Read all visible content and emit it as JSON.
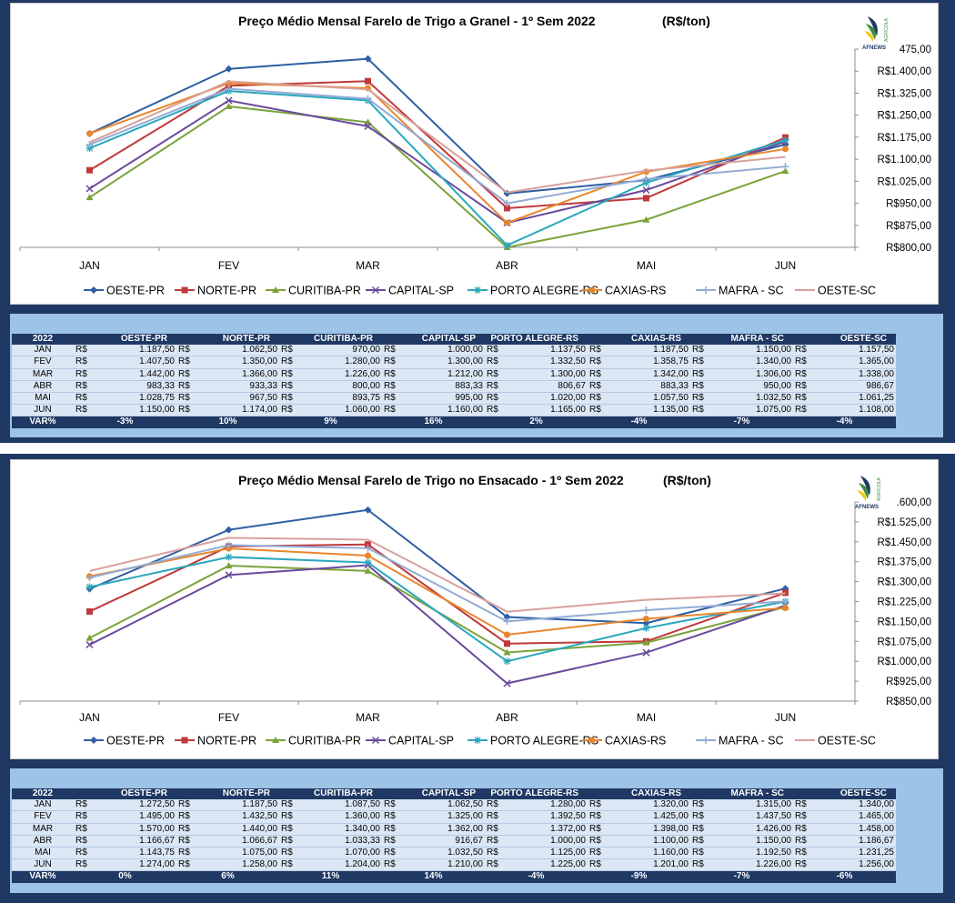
{
  "currency_symbol": "R$",
  "colors": {
    "OESTE-PR": "#2e5fa3",
    "NORTE-PR": "#c0393b",
    "CURITIBA-PR": "#7ba33a",
    "CAPITAL-SP": "#6a4a9c",
    "PORTO ALEGRE-RS": "#2aa7bd",
    "CAXIAS-RS": "#e8862e",
    "MAFRA - SC": "#92abd6",
    "OESTE-SC": "#d7a09c"
  },
  "logo": {
    "text": "AFNEWS",
    "subtext": "AGRÍCOLA"
  },
  "chart_data": [
    {
      "type": "line",
      "title": "Preço Médio Mensal Farelo de Trigo a Granel - 1º Sem 2022",
      "title_unit": "(R$/ton)",
      "categories": [
        "JAN",
        "FEV",
        "MAR",
        "ABR",
        "MAI",
        "JUN"
      ],
      "ylim": [
        800,
        1475
      ],
      "y_ticks": [
        "R$800,00",
        "R$875,00",
        "R$950,00",
        "R$1.025,00",
        "R$1.100,00",
        "R$1.175,00",
        "R$1.250,00",
        "R$1.325,00",
        "R$1.400,00",
        "475,00"
      ],
      "legend_position": "bottom",
      "grid": false,
      "series": [
        {
          "name": "OESTE-PR",
          "marker": "diamond",
          "values": [
            1187.5,
            1407.5,
            1442.0,
            983.33,
            1028.75,
            1150.0
          ]
        },
        {
          "name": "NORTE-PR",
          "marker": "square",
          "values": [
            1062.5,
            1350.0,
            1366.0,
            933.33,
            967.5,
            1174.0
          ]
        },
        {
          "name": "CURITIBA-PR",
          "marker": "triangle",
          "values": [
            970.0,
            1280.0,
            1226.0,
            800.0,
            893.75,
            1060.0
          ]
        },
        {
          "name": "CAPITAL-SP",
          "marker": "x",
          "values": [
            1000.0,
            1300.0,
            1212.0,
            883.33,
            995.0,
            1160.0
          ]
        },
        {
          "name": "PORTO ALEGRE-RS",
          "marker": "star",
          "values": [
            1137.5,
            1332.5,
            1300.0,
            806.67,
            1020.0,
            1165.0
          ]
        },
        {
          "name": "CAXIAS-RS",
          "marker": "circle",
          "values": [
            1187.5,
            1358.75,
            1342.0,
            883.33,
            1057.5,
            1135.0
          ]
        },
        {
          "name": "MAFRA - SC",
          "marker": "plus",
          "values": [
            1150.0,
            1340.0,
            1306.0,
            950.0,
            1032.5,
            1075.0
          ]
        },
        {
          "name": "OESTE-SC",
          "marker": "none",
          "values": [
            1157.5,
            1365.0,
            1338.0,
            986.67,
            1061.25,
            1108.0
          ]
        }
      ]
    },
    {
      "type": "line",
      "title": "Preço Médio Mensal Farelo de Trigo  no Ensacado - 1º Sem 2022",
      "title_unit": "(R$/ton)",
      "categories": [
        "JAN",
        "FEV",
        "MAR",
        "ABR",
        "MAI",
        "JUN"
      ],
      "ylim": [
        850,
        1600
      ],
      "y_ticks": [
        "R$850,00",
        "R$925,00",
        "R$1.000,00",
        "R$1.075,00",
        "R$1.150,00",
        "R$1.225,00",
        "R$1.300,00",
        "R$1.375,00",
        "R$1.450,00",
        "R$1.525,00",
        ".600,00"
      ],
      "legend_position": "bottom",
      "grid": false,
      "series": [
        {
          "name": "OESTE-PR",
          "marker": "diamond",
          "values": [
            1272.5,
            1495.0,
            1570.0,
            1166.67,
            1143.75,
            1274.0
          ]
        },
        {
          "name": "NORTE-PR",
          "marker": "square",
          "values": [
            1187.5,
            1432.5,
            1440.0,
            1066.67,
            1075.0,
            1258.0
          ]
        },
        {
          "name": "CURITIBA-PR",
          "marker": "triangle",
          "values": [
            1087.5,
            1360.0,
            1340.0,
            1033.33,
            1070.0,
            1204.0
          ]
        },
        {
          "name": "CAPITAL-SP",
          "marker": "x",
          "values": [
            1062.5,
            1325.0,
            1362.0,
            916.67,
            1032.5,
            1210.0
          ]
        },
        {
          "name": "PORTO ALEGRE-RS",
          "marker": "star",
          "values": [
            1280.0,
            1392.5,
            1372.0,
            1000.0,
            1125.0,
            1225.0
          ]
        },
        {
          "name": "CAXIAS-RS",
          "marker": "circle",
          "values": [
            1320.0,
            1425.0,
            1398.0,
            1100.0,
            1160.0,
            1201.0
          ]
        },
        {
          "name": "MAFRA - SC",
          "marker": "plus",
          "values": [
            1315.0,
            1437.5,
            1426.0,
            1150.0,
            1192.5,
            1226.0
          ]
        },
        {
          "name": "OESTE-SC",
          "marker": "none",
          "values": [
            1340.0,
            1465.0,
            1458.0,
            1186.67,
            1231.25,
            1256.0
          ]
        }
      ]
    }
  ],
  "tables": [
    {
      "header": [
        "2022",
        "OESTE-PR",
        "NORTE-PR",
        "CURITIBA-PR",
        "CAPITAL-SP",
        "PORTO ALEGRE-RS",
        "CAXIAS-RS",
        "MAFRA - SC",
        "OESTE-SC"
      ],
      "rows": [
        {
          "label": "JAN",
          "values": [
            "1.187,50",
            "1.062,50",
            "970,00",
            "1.000,00",
            "1.137,50",
            "1.187,50",
            "1.150,00",
            "1.157,50"
          ]
        },
        {
          "label": "FEV",
          "values": [
            "1.407,50",
            "1.350,00",
            "1.280,00",
            "1.300,00",
            "1.332,50",
            "1.358,75",
            "1.340,00",
            "1.365,00"
          ]
        },
        {
          "label": "MAR",
          "values": [
            "1.442,00",
            "1.366,00",
            "1.226,00",
            "1.212,00",
            "1.300,00",
            "1.342,00",
            "1.306,00",
            "1.338,00"
          ]
        },
        {
          "label": "ABR",
          "values": [
            "983,33",
            "933,33",
            "800,00",
            "883,33",
            "806,67",
            "883,33",
            "950,00",
            "986,67"
          ]
        },
        {
          "label": "MAI",
          "values": [
            "1.028,75",
            "967,50",
            "893,75",
            "995,00",
            "1.020,00",
            "1.057,50",
            "1.032,50",
            "1.061,25"
          ]
        },
        {
          "label": "JUN",
          "values": [
            "1.150,00",
            "1.174,00",
            "1.060,00",
            "1.160,00",
            "1.165,00",
            "1.135,00",
            "1.075,00",
            "1.108,00"
          ]
        }
      ],
      "var_label": "VAR%",
      "var": [
        "-3%",
        "10%",
        "9%",
        "16%",
        "2%",
        "-4%",
        "-7%",
        "-4%"
      ]
    },
    {
      "header": [
        "2022",
        "OESTE-PR",
        "NORTE-PR",
        "CURITIBA-PR",
        "CAPITAL-SP",
        "PORTO ALEGRE-RS",
        "CAXIAS-RS",
        "MAFRA - SC",
        "OESTE-SC"
      ],
      "rows": [
        {
          "label": "JAN",
          "values": [
            "1.272,50",
            "1.187,50",
            "1.087,50",
            "1.062,50",
            "1.280,00",
            "1.320,00",
            "1.315,00",
            "1.340,00"
          ]
        },
        {
          "label": "FEV",
          "values": [
            "1.495,00",
            "1.432,50",
            "1.360,00",
            "1.325,00",
            "1.392,50",
            "1.425,00",
            "1.437,50",
            "1.465,00"
          ]
        },
        {
          "label": "MAR",
          "values": [
            "1.570,00",
            "1.440,00",
            "1.340,00",
            "1.362,00",
            "1.372,00",
            "1.398,00",
            "1.426,00",
            "1.458,00"
          ]
        },
        {
          "label": "ABR",
          "values": [
            "1.166,67",
            "1.066,67",
            "1.033,33",
            "916,67",
            "1.000,00",
            "1.100,00",
            "1.150,00",
            "1.186,67"
          ]
        },
        {
          "label": "MAI",
          "values": [
            "1.143,75",
            "1.075,00",
            "1.070,00",
            "1.032,50",
            "1.125,00",
            "1.160,00",
            "1.192,50",
            "1.231,25"
          ]
        },
        {
          "label": "JUN",
          "values": [
            "1.274,00",
            "1.258,00",
            "1.204,00",
            "1.210,00",
            "1.225,00",
            "1.201,00",
            "1.226,00",
            "1.256,00"
          ]
        }
      ],
      "var_label": "VAR%",
      "var": [
        "0%",
        "6%",
        "11%",
        "14%",
        "-4%",
        "-9%",
        "-7%",
        "-6%"
      ]
    }
  ]
}
